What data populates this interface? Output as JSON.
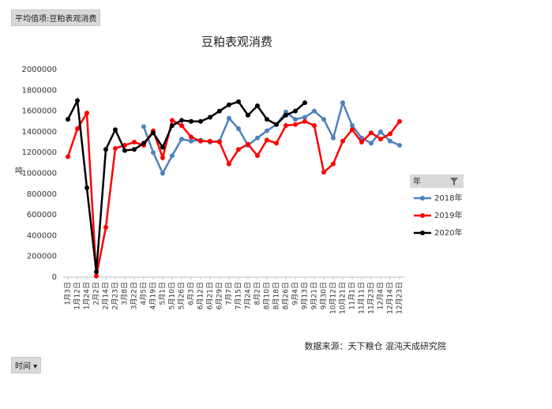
{
  "header": {
    "field_button": "平均值项:豆粕表观消费"
  },
  "footer": {
    "field_button": "时间"
  },
  "chart_data": {
    "type": "line",
    "title": "豆粕表观消费",
    "y_label": "吨",
    "source": "数据来源：天下粮仓 混沌天成研究院",
    "legend_title": "年",
    "legend_position": "right",
    "grid": false,
    "categories": [
      "1月3日",
      "1月12日",
      "1月24日",
      "2月2日",
      "2月14日",
      "2月23日",
      "3月8日",
      "3月22日",
      "4月5日",
      "4月19日",
      "5月1日",
      "5月10日",
      "5月26日",
      "6月3日",
      "6月12日",
      "6月21日",
      "6月29日",
      "7月7日",
      "7月15日",
      "7月24日",
      "8月2日",
      "8月10日",
      "8月18日",
      "8月26日",
      "9月4日",
      "9月13日",
      "9月21日",
      "9月30日",
      "10月12日",
      "10月21日",
      "11月1日",
      "11月11日",
      "11月23日",
      "12月4日",
      "12月14日",
      "12月23日"
    ],
    "ylim": [
      0,
      2000000
    ],
    "yticks": [
      0,
      200000,
      400000,
      600000,
      800000,
      1000000,
      1200000,
      1400000,
      1600000,
      1800000,
      2000000
    ],
    "series": [
      {
        "name": "2018年",
        "color": "#4f81bd",
        "values": [
          null,
          null,
          null,
          null,
          null,
          null,
          null,
          null,
          1450000,
          1200000,
          1000000,
          1170000,
          1330000,
          1310000,
          1320000,
          1300000,
          1310000,
          1530000,
          1430000,
          1270000,
          1340000,
          1410000,
          1470000,
          1590000,
          1520000,
          1540000,
          1600000,
          1520000,
          1340000,
          1680000,
          1460000,
          1340000,
          1290000,
          1400000,
          1310000,
          1270000
        ]
      },
      {
        "name": "2019年",
        "color": "#ff0000",
        "values": [
          1160000,
          1430000,
          1580000,
          10000,
          480000,
          1240000,
          1270000,
          1300000,
          1270000,
          1410000,
          1150000,
          1510000,
          1460000,
          1350000,
          1310000,
          1310000,
          1300000,
          1090000,
          1230000,
          1280000,
          1170000,
          1320000,
          1290000,
          1460000,
          1470000,
          1500000,
          1460000,
          1010000,
          1090000,
          1310000,
          1420000,
          1300000,
          1390000,
          1330000,
          1380000,
          1500000
        ]
      },
      {
        "name": "2020年",
        "color": "#000000",
        "values": [
          1520000,
          1700000,
          860000,
          50000,
          1230000,
          1420000,
          1220000,
          1230000,
          1290000,
          1390000,
          1250000,
          1460000,
          1510000,
          1500000,
          1500000,
          1540000,
          1600000,
          1660000,
          1690000,
          1560000,
          1650000,
          1520000,
          1470000,
          1560000,
          1600000,
          1680000,
          null,
          null,
          null,
          null,
          null,
          null,
          null,
          null,
          null,
          null
        ]
      }
    ]
  }
}
